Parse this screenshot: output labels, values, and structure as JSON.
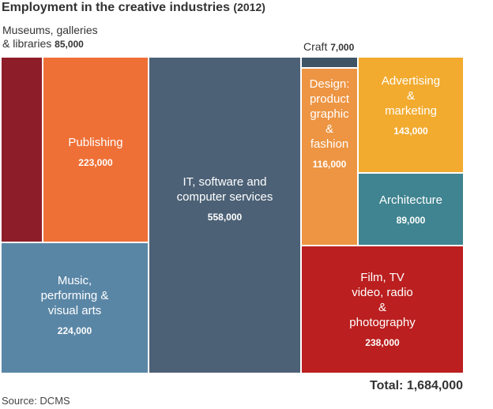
{
  "chart_data": {
    "type": "treemap",
    "title": "Employment in the creative industries",
    "title_suffix": "(2012)",
    "source": "Source: DCMS",
    "total_label": "Total: 1,684,000",
    "tiles": [
      {
        "name": "Museums, galleries & libraries",
        "lines": [
          "Museums, galleries",
          "& libraries"
        ],
        "value": 85000,
        "value_label": "85,000",
        "color": "#8e1d2a",
        "label_outside": true
      },
      {
        "name": "Publishing",
        "lines": [
          "Publishing"
        ],
        "value": 223000,
        "value_label": "223,000",
        "color": "#ef7036"
      },
      {
        "name": "Music, performing & visual arts",
        "lines": [
          "Music,",
          "performing &",
          "visual arts"
        ],
        "value": 224000,
        "value_label": "224,000",
        "color": "#5a86a6"
      },
      {
        "name": "IT, software and computer services",
        "lines": [
          "IT, software and",
          "computer services"
        ],
        "value": 558000,
        "value_label": "558,000",
        "color": "#4c6176"
      },
      {
        "name": "Craft",
        "lines": [
          "Craft"
        ],
        "value": 7000,
        "value_label": "7,000",
        "color": "#3f5566",
        "label_outside": true
      },
      {
        "name": "Design: product graphic & fashion",
        "lines": [
          "Design:",
          "product",
          "graphic",
          "&",
          "fashion"
        ],
        "value": 116000,
        "value_label": "116,000",
        "color": "#ed9543"
      },
      {
        "name": "Advertising & marketing",
        "lines": [
          "Advertising",
          "&",
          "marketing"
        ],
        "value": 143000,
        "value_label": "143,000",
        "color": "#f2ab2f"
      },
      {
        "name": "Architecture",
        "lines": [
          "Architecture"
        ],
        "value": 89000,
        "value_label": "89,000",
        "color": "#3f8490"
      },
      {
        "name": "Film, TV video, radio & photography",
        "lines": [
          "Film, TV",
          "video, radio",
          "&",
          "photography"
        ],
        "value": 238000,
        "value_label": "238,000",
        "color": "#bb1f1f"
      }
    ]
  }
}
